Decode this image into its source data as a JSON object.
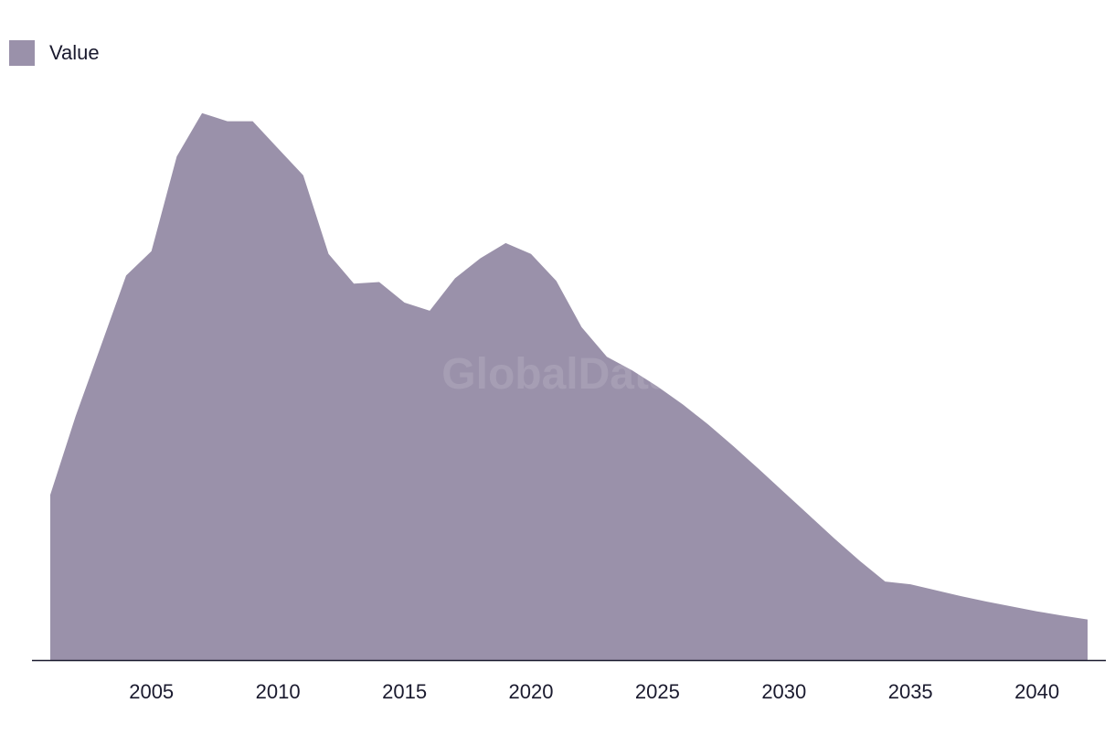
{
  "chart_data": {
    "type": "area",
    "title": "",
    "xlabel": "",
    "ylabel": "",
    "legend": {
      "position": "top-left",
      "label": "Value"
    },
    "grid": false,
    "x": [
      2001,
      2002,
      2003,
      2004,
      2005,
      2006,
      2007,
      2008,
      2009,
      2010,
      2011,
      2012,
      2013,
      2014,
      2015,
      2016,
      2017,
      2018,
      2019,
      2020,
      2021,
      2022,
      2023,
      2024,
      2025,
      2026,
      2027,
      2028,
      2029,
      2030,
      2031,
      2032,
      2033,
      2034,
      2035,
      2036,
      2037,
      2038,
      2039,
      2040,
      2041,
      2042
    ],
    "series": [
      {
        "name": "Value",
        "values": [
          30.5,
          45.0,
          58.0,
          71.0,
          75.5,
          93.0,
          101.0,
          99.5,
          99.5,
          94.5,
          89.5,
          75.0,
          69.5,
          69.8,
          66.0,
          64.5,
          70.5,
          74.2,
          77.0,
          75.0,
          70.0,
          61.5,
          56.0,
          53.5,
          50.5,
          47.2,
          43.5,
          39.5,
          35.3,
          31.0,
          26.7,
          22.4,
          18.3,
          14.5,
          14.0,
          12.9,
          11.8,
          10.8,
          9.9,
          9.0,
          8.2,
          7.5
        ]
      }
    ],
    "xticks": [
      2005,
      2010,
      2015,
      2020,
      2025,
      2030,
      2035,
      2040
    ],
    "xlim": [
      2001,
      2042
    ],
    "ylim": [
      0,
      105
    ],
    "colors": {
      "area": "#9a91aa",
      "axis": "#1a1a2e"
    },
    "watermark": "GlobalData"
  }
}
